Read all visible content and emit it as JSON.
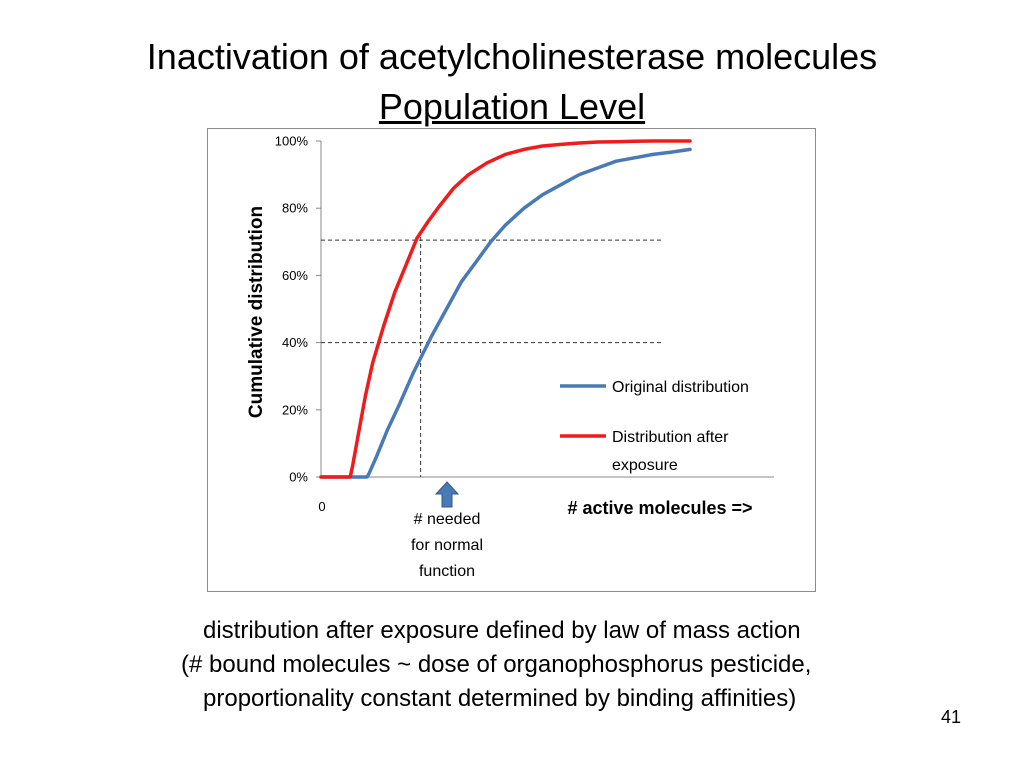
{
  "slide": {
    "title_line1": "Inactivation of acetylcholinesterase molecules",
    "title_line2": "Population Level",
    "caption_line1": "distribution after exposure defined by law of mass action",
    "caption_line2": "(#  bound molecules ~ dose of organophosphorus pesticide,",
    "caption_line3": "proportionality constant determined by binding affinities)",
    "page_number": "41"
  },
  "chart_data": {
    "type": "line",
    "ylabel": "Cumulative distribution",
    "xlabel": "# active molecules =>",
    "x_tick_label": "0",
    "y_ticks": [
      "0%",
      "20%",
      "40%",
      "60%",
      "80%",
      "100%"
    ],
    "ylim": [
      0,
      100
    ],
    "xlim": [
      0,
      100
    ],
    "grid": false,
    "legend_position": "right",
    "series": [
      {
        "name": "Original distribution",
        "color": "#4a7ab5",
        "x": [
          0,
          12.5,
          13,
          15,
          18,
          21,
          25,
          30,
          34,
          38,
          42,
          46,
          50,
          55,
          60,
          65,
          70,
          75,
          80,
          85,
          90,
          95,
          100
        ],
        "y": [
          0,
          0,
          1,
          6,
          14,
          21,
          31,
          42,
          50,
          58,
          64,
          70,
          75,
          80,
          84,
          87,
          90,
          92,
          94,
          95,
          96,
          96.7,
          97.5
        ]
      },
      {
        "name": "Distribution after exposure",
        "color": "#ee1c1c",
        "x": [
          0,
          7.9,
          8.5,
          10,
          12,
          14,
          17,
          20,
          23,
          26,
          29,
          32,
          36,
          40,
          45,
          50,
          55,
          60,
          65,
          70,
          75,
          80,
          85,
          90,
          95,
          100
        ],
        "y": [
          0,
          0,
          3,
          12,
          24,
          34,
          45,
          55,
          63,
          71,
          76,
          80.5,
          86,
          90,
          93.5,
          96,
          97.5,
          98.5,
          99,
          99.4,
          99.7,
          99.8,
          99.9,
          100,
          100,
          100
        ]
      }
    ],
    "reference_lines": [
      {
        "type": "horizontal",
        "y": 70.5
      },
      {
        "type": "horizontal",
        "y": 40
      },
      {
        "type": "vertical",
        "x": 27
      }
    ],
    "annotation": {
      "x": 27,
      "lines": [
        "# needed",
        "for normal",
        "function"
      ]
    }
  }
}
